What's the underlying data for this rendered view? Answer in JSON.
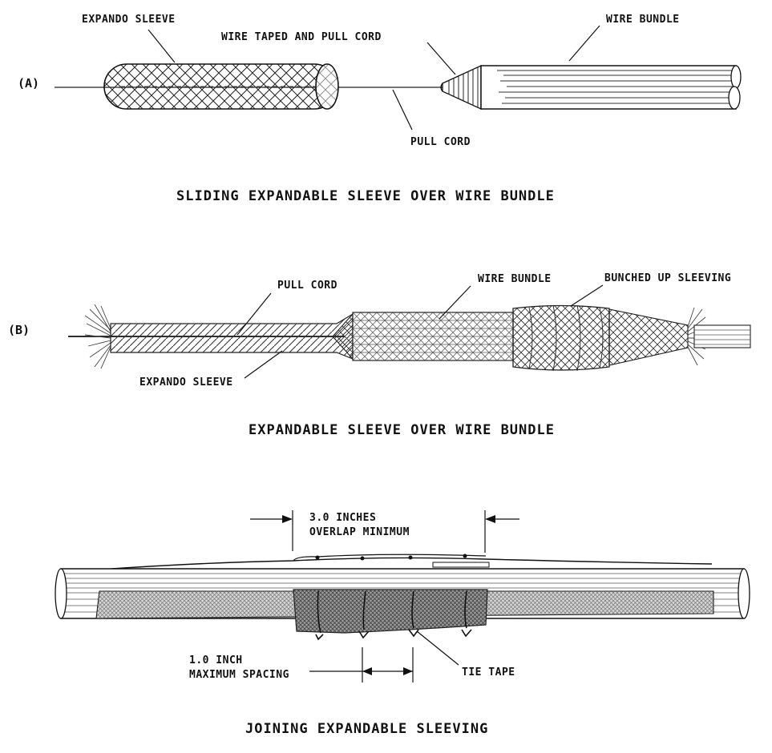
{
  "panel_a": {
    "marker": "(A)",
    "labels": {
      "expando_sleeve": "EXPANDO SLEEVE",
      "wire_taped": "WIRE TAPED AND PULL CORD",
      "wire_bundle": "WIRE BUNDLE",
      "pull_cord": "PULL CORD"
    },
    "caption": "SLIDING EXPANDABLE SLEEVE OVER WIRE BUNDLE"
  },
  "panel_b": {
    "marker": "(B)",
    "labels": {
      "pull_cord": "PULL CORD",
      "wire_bundle": "WIRE BUNDLE",
      "bunched": "BUNCHED UP SLEEVING",
      "expando_sleeve": "EXPANDO SLEEVE"
    },
    "caption": "EXPANDABLE SLEEVE OVER WIRE BUNDLE"
  },
  "panel_c": {
    "labels": {
      "overlap_line1": "3.0 INCHES",
      "overlap_line2": "OVERLAP MINIMUM",
      "spacing_line1": "1.0 INCH",
      "spacing_line2": "MAXIMUM SPACING",
      "tie_tape": "TIE TAPE"
    },
    "caption": "JOINING EXPANDABLE SLEEVING"
  }
}
